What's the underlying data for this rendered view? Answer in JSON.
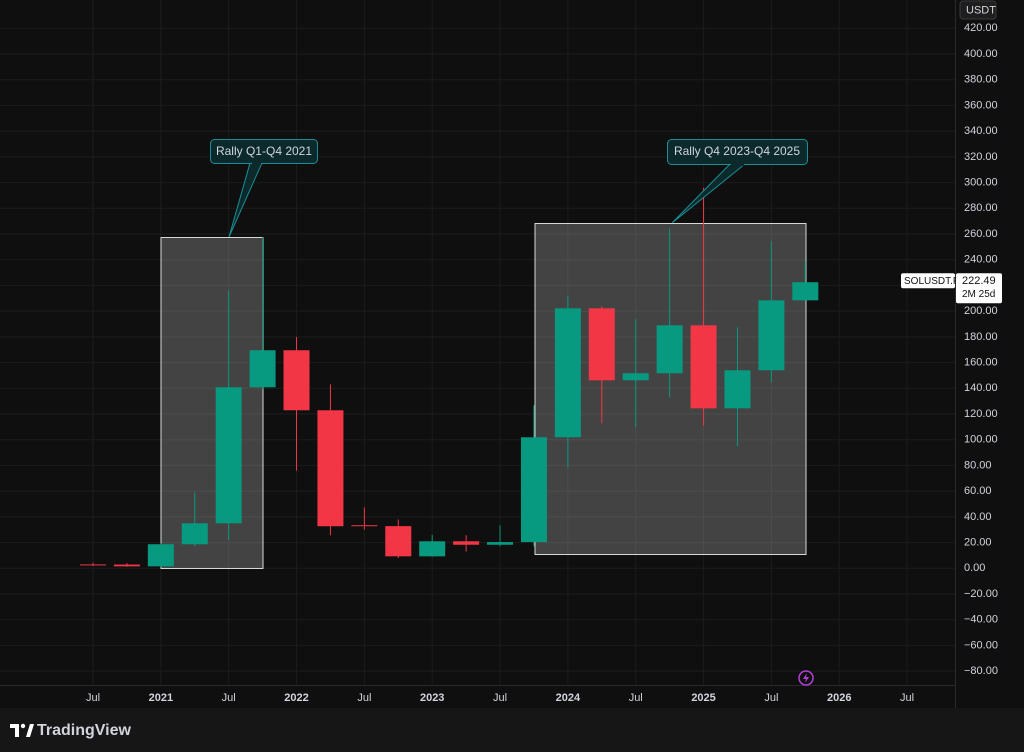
{
  "chart_data": {
    "type": "candlestick",
    "currency": "USDT",
    "symbol": "SOLUSDT.P",
    "countdown": "2M 25d",
    "brand": "TradingView",
    "up_color": "#089981",
    "down_color": "#f23645",
    "grid": true,
    "categories": [
      "Jul",
      null,
      "2021",
      null,
      "Jul",
      null,
      "2022",
      null,
      "Jul",
      null,
      "2023",
      null,
      "Jul",
      null,
      "2024",
      null,
      "Jul",
      null,
      "2025",
      null,
      "Jul",
      null,
      "2026",
      null,
      "Jul"
    ],
    "open": [
      3,
      2.9,
      1.5,
      18.7,
      35,
      140.8,
      169.6,
      122.9,
      33.5,
      32.8,
      9.3,
      21,
      18.3,
      20.4,
      101.9,
      202.2,
      146.2,
      151.7,
      189,
      124.4,
      154,
      208.4,
      null,
      null,
      null
    ],
    "high": [
      4.4,
      4,
      19.5,
      59,
      216,
      257.5,
      180,
      143,
      47.4,
      38,
      26,
      25.7,
      33.4,
      126.8,
      211.5,
      203.8,
      193.7,
      264.4,
      296,
      187.4,
      254.3,
      238.8,
      null,
      null,
      null
    ],
    "low": [
      1.9,
      1.2,
      1,
      17,
      22,
      139,
      76,
      25.7,
      30,
      8,
      9,
      13,
      17,
      17,
      78.5,
      112.8,
      109.7,
      133,
      111,
      95,
      144.7,
      208,
      null,
      null,
      null
    ],
    "close": [
      2.9,
      1.5,
      18.7,
      35,
      140.8,
      169.6,
      122.9,
      32.7,
      32.8,
      9.3,
      21,
      18.3,
      20.4,
      101.9,
      202.2,
      146.2,
      151.7,
      189,
      124.4,
      154,
      208.4,
      222.49,
      null,
      null,
      null
    ],
    "ylim": [
      -90,
      442
    ],
    "yticks": [
      {
        "value": 420,
        "label": "420.00"
      },
      {
        "value": 400,
        "label": "400.00"
      },
      {
        "value": 380,
        "label": "380.00"
      },
      {
        "value": 360,
        "label": "360.00"
      },
      {
        "value": 340,
        "label": "340.00"
      },
      {
        "value": 320,
        "label": "320.00"
      },
      {
        "value": 300,
        "label": "300.00"
      },
      {
        "value": 280,
        "label": "280.00"
      },
      {
        "value": 260,
        "label": "260.00"
      },
      {
        "value": 240,
        "label": "240.00"
      },
      {
        "value": 220,
        "label": "220.00"
      },
      {
        "value": 200,
        "label": "200.00"
      },
      {
        "value": 180,
        "label": "180.00"
      },
      {
        "value": 160,
        "label": "160.00"
      },
      {
        "value": 140,
        "label": "140.00"
      },
      {
        "value": 120,
        "label": "120.00"
      },
      {
        "value": 100,
        "label": "100.00"
      },
      {
        "value": 80,
        "label": "80.00"
      },
      {
        "value": 60,
        "label": "60.00"
      },
      {
        "value": 40,
        "label": "40.00"
      },
      {
        "value": 20,
        "label": "20.00"
      },
      {
        "value": 0,
        "label": "0.00"
      },
      {
        "value": -20,
        "label": "−20.00"
      },
      {
        "value": -40,
        "label": "−40.00"
      },
      {
        "value": -60,
        "label": "−60.00"
      },
      {
        "value": -80,
        "label": "−80.00"
      }
    ],
    "annotations": [
      "Rally Q1-Q4 2021",
      "Rally Q4 2023-Q4 2025"
    ]
  }
}
